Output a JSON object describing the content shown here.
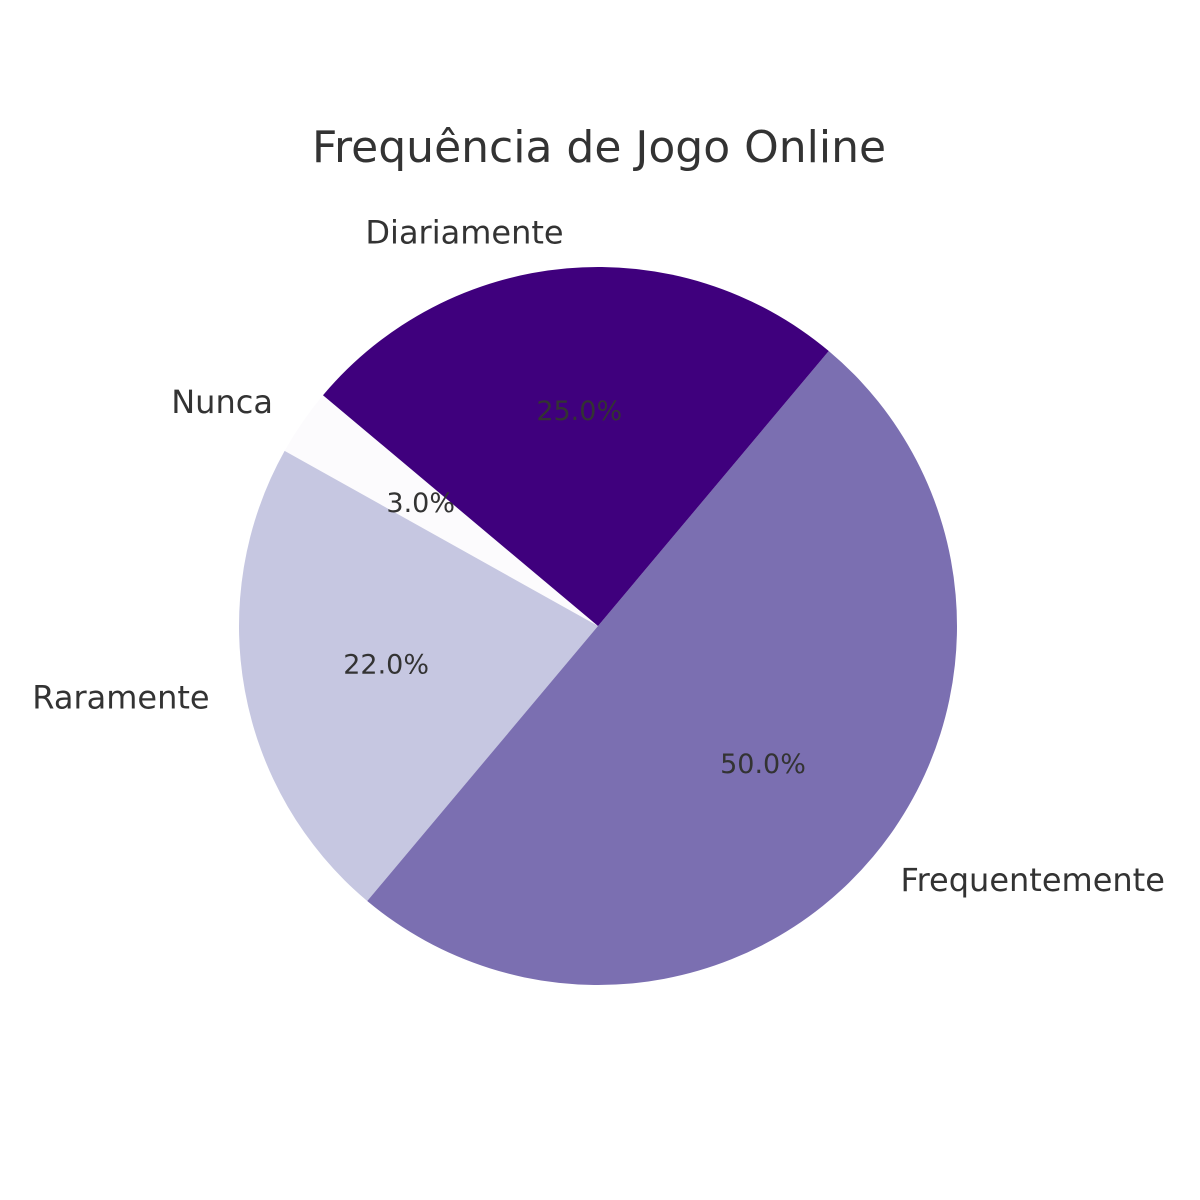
{
  "chart_data": {
    "type": "pie",
    "title": "Frequência de Jogo Online",
    "start_angle_deg": 140,
    "direction": "counterclockwise",
    "slices": [
      {
        "label": "Nunca",
        "value": 3.0,
        "pct_text": "3.0%",
        "color": "#fcfbfd"
      },
      {
        "label": "Raramente",
        "value": 22.0,
        "pct_text": "22.0%",
        "color": "#c6c7e1"
      },
      {
        "label": "Frequentemente",
        "value": 50.0,
        "pct_text": "50.0%",
        "color": "#7b6fb1"
      },
      {
        "label": "Diariamente",
        "value": 25.0,
        "pct_text": "25.0%",
        "color": "#3f007d"
      }
    ]
  }
}
